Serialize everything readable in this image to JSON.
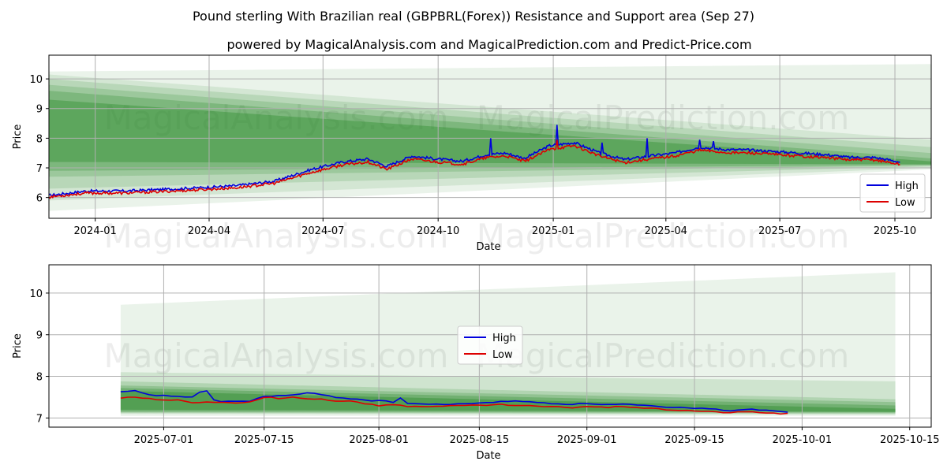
{
  "title": "Pound sterling With Brazilian real (GBPBRL(Forex)) Resistance and Support area (Sep 27)",
  "subtitle": "powered by MagicalAnalysis.com and MagicalPrediction.com and Predict-Price.com",
  "watermarks": [
    "MagicalAnalysis.com",
    "MagicalPrediction.com"
  ],
  "colors": {
    "high": "#0000dd",
    "low": "#dd0000",
    "band": "#2e8b2e",
    "grid": "#b0b0b0"
  },
  "chart_data": [
    {
      "type": "line",
      "name": "full-history",
      "xlabel": "Date",
      "ylabel": "Price",
      "xlim": [
        0,
        705
      ],
      "ylim": [
        5.3,
        10.8
      ],
      "xtick_positions": [
        37,
        128,
        219,
        311,
        403,
        493,
        584,
        676
      ],
      "xticks": [
        "2024-01",
        "2024-04",
        "2024-07",
        "2024-10",
        "2025-01",
        "2025-04",
        "2025-07",
        "2025-10"
      ],
      "yticks": [
        6,
        7,
        8,
        9,
        10
      ],
      "legend": [
        "High",
        "Low"
      ],
      "legend_position": "lower right",
      "grid": true,
      "high_anchors": [
        [
          0,
          6.07
        ],
        [
          30,
          6.22
        ],
        [
          60,
          6.22
        ],
        [
          90,
          6.27
        ],
        [
          120,
          6.33
        ],
        [
          150,
          6.4
        ],
        [
          180,
          6.55
        ],
        [
          210,
          6.95
        ],
        [
          235,
          7.2
        ],
        [
          255,
          7.3
        ],
        [
          270,
          7.05
        ],
        [
          290,
          7.4
        ],
        [
          310,
          7.3
        ],
        [
          330,
          7.22
        ],
        [
          350,
          7.45
        ],
        [
          365,
          7.5
        ],
        [
          380,
          7.32
        ],
        [
          400,
          7.75
        ],
        [
          420,
          7.85
        ],
        [
          440,
          7.5
        ],
        [
          460,
          7.28
        ],
        [
          480,
          7.4
        ],
        [
          500,
          7.5
        ],
        [
          520,
          7.7
        ],
        [
          540,
          7.62
        ],
        [
          560,
          7.6
        ],
        [
          580,
          7.55
        ],
        [
          600,
          7.5
        ],
        [
          620,
          7.45
        ],
        [
          640,
          7.35
        ],
        [
          660,
          7.35
        ],
        [
          680,
          7.2
        ]
      ],
      "high_spikes": [
        [
          353,
          8.0
        ],
        [
          406,
          8.45
        ],
        [
          442,
          7.85
        ],
        [
          478,
          8.0
        ],
        [
          520,
          7.95
        ],
        [
          531,
          7.9
        ]
      ],
      "low_anchors": [
        [
          0,
          6.02
        ],
        [
          30,
          6.15
        ],
        [
          60,
          6.15
        ],
        [
          90,
          6.2
        ],
        [
          120,
          6.26
        ],
        [
          150,
          6.33
        ],
        [
          180,
          6.48
        ],
        [
          210,
          6.85
        ],
        [
          235,
          7.1
        ],
        [
          255,
          7.2
        ],
        [
          270,
          6.95
        ],
        [
          290,
          7.3
        ],
        [
          310,
          7.2
        ],
        [
          330,
          7.12
        ],
        [
          350,
          7.35
        ],
        [
          365,
          7.4
        ],
        [
          380,
          7.22
        ],
        [
          400,
          7.62
        ],
        [
          420,
          7.75
        ],
        [
          440,
          7.4
        ],
        [
          460,
          7.18
        ],
        [
          480,
          7.3
        ],
        [
          500,
          7.4
        ],
        [
          520,
          7.6
        ],
        [
          540,
          7.52
        ],
        [
          560,
          7.5
        ],
        [
          580,
          7.45
        ],
        [
          600,
          7.4
        ],
        [
          620,
          7.35
        ],
        [
          640,
          7.27
        ],
        [
          660,
          7.27
        ],
        [
          680,
          7.12
        ]
      ],
      "low_spikes": [
        [
          406,
          7.95
        ]
      ],
      "series_end": 680,
      "bands": {
        "x_start": 0,
        "x_end": 705,
        "start": [
          [
            5.55,
            10.25,
            0.1
          ],
          [
            5.9,
            10.15,
            0.12
          ],
          [
            6.3,
            10.0,
            0.16
          ],
          [
            6.7,
            9.8,
            0.2
          ],
          [
            6.9,
            9.6,
            0.28
          ],
          [
            7.2,
            9.3,
            0.4
          ]
        ],
        "end": [
          [
            6.95,
            10.5,
            0.1
          ],
          [
            7.0,
            7.95,
            0.14
          ],
          [
            7.05,
            7.7,
            0.18
          ],
          [
            7.08,
            7.5,
            0.24
          ],
          [
            7.1,
            7.32,
            0.32
          ],
          [
            7.12,
            7.22,
            0.45
          ]
        ]
      }
    },
    {
      "type": "line",
      "name": "recent-zoom",
      "xlabel": "Date",
      "ylabel": "Price",
      "xlim": [
        -10,
        113
      ],
      "ylim": [
        6.78,
        10.68
      ],
      "xtick_positions": [
        6,
        20,
        36,
        50,
        65,
        80,
        95,
        110
      ],
      "xticks": [
        "2025-07-01",
        "2025-07-15",
        "2025-08-01",
        "2025-08-15",
        "2025-09-01",
        "2025-09-15",
        "2025-10-01",
        "2025-10-15"
      ],
      "yticks": [
        7,
        8,
        9,
        10
      ],
      "legend": [
        "High",
        "Low"
      ],
      "legend_position": "center",
      "grid": true,
      "high_anchors": [
        [
          0,
          7.62
        ],
        [
          2,
          7.65
        ],
        [
          4,
          7.55
        ],
        [
          8,
          7.52
        ],
        [
          10,
          7.5
        ],
        [
          12,
          7.48
        ],
        [
          14,
          7.4
        ],
        [
          18,
          7.4
        ],
        [
          20,
          7.52
        ],
        [
          24,
          7.55
        ],
        [
          26,
          7.6
        ],
        [
          28,
          7.56
        ],
        [
          30,
          7.5
        ],
        [
          33,
          7.45
        ],
        [
          35,
          7.42
        ],
        [
          37,
          7.4
        ],
        [
          40,
          7.35
        ],
        [
          43,
          7.33
        ],
        [
          45,
          7.32
        ],
        [
          48,
          7.35
        ],
        [
          50,
          7.35
        ],
        [
          53,
          7.4
        ],
        [
          55,
          7.4
        ],
        [
          58,
          7.38
        ],
        [
          60,
          7.35
        ],
        [
          63,
          7.33
        ],
        [
          65,
          7.35
        ],
        [
          68,
          7.32
        ],
        [
          70,
          7.33
        ],
        [
          73,
          7.3
        ],
        [
          76,
          7.25
        ],
        [
          79,
          7.25
        ],
        [
          82,
          7.22
        ],
        [
          85,
          7.18
        ],
        [
          88,
          7.22
        ],
        [
          90,
          7.18
        ],
        [
          93,
          7.15
        ]
      ],
      "high_spikes": [
        [
          11,
          7.62
        ],
        [
          12,
          7.65
        ],
        [
          39,
          7.48
        ]
      ],
      "low_anchors": [
        [
          0,
          7.48
        ],
        [
          2,
          7.5
        ],
        [
          4,
          7.46
        ],
        [
          6,
          7.42
        ],
        [
          8,
          7.44
        ],
        [
          10,
          7.36
        ],
        [
          12,
          7.38
        ],
        [
          14,
          7.38
        ],
        [
          16,
          7.36
        ],
        [
          18,
          7.38
        ],
        [
          20,
          7.48
        ],
        [
          22,
          7.46
        ],
        [
          24,
          7.5
        ],
        [
          26,
          7.46
        ],
        [
          28,
          7.46
        ],
        [
          30,
          7.4
        ],
        [
          32,
          7.42
        ],
        [
          34,
          7.35
        ],
        [
          36,
          7.3
        ],
        [
          38,
          7.32
        ],
        [
          40,
          7.28
        ],
        [
          43,
          7.28
        ],
        [
          45,
          7.28
        ],
        [
          48,
          7.3
        ],
        [
          50,
          7.3
        ],
        [
          53,
          7.32
        ],
        [
          55,
          7.3
        ],
        [
          58,
          7.28
        ],
        [
          60,
          7.27
        ],
        [
          63,
          7.25
        ],
        [
          65,
          7.28
        ],
        [
          68,
          7.25
        ],
        [
          70,
          7.28
        ],
        [
          73,
          7.24
        ],
        [
          76,
          7.2
        ],
        [
          79,
          7.18
        ],
        [
          82,
          7.15
        ],
        [
          85,
          7.13
        ],
        [
          88,
          7.15
        ],
        [
          90,
          7.12
        ],
        [
          93,
          7.1
        ]
      ],
      "low_spikes": [
        [
          21,
          7.5
        ]
      ],
      "series_end": 93,
      "bands": {
        "x_start": 0,
        "x_end": 108,
        "start": [
          [
            7.05,
            9.72,
            0.1
          ],
          [
            7.1,
            8.1,
            0.14
          ],
          [
            7.12,
            7.88,
            0.18
          ],
          [
            7.14,
            7.78,
            0.24
          ],
          [
            7.16,
            7.72,
            0.32
          ],
          [
            7.2,
            7.65,
            0.45
          ]
        ],
        "end": [
          [
            7.05,
            10.5,
            0.1
          ],
          [
            7.08,
            7.88,
            0.14
          ],
          [
            7.1,
            7.45,
            0.18
          ],
          [
            7.12,
            7.38,
            0.24
          ],
          [
            7.14,
            7.3,
            0.32
          ],
          [
            7.15,
            7.22,
            0.45
          ]
        ]
      }
    }
  ]
}
